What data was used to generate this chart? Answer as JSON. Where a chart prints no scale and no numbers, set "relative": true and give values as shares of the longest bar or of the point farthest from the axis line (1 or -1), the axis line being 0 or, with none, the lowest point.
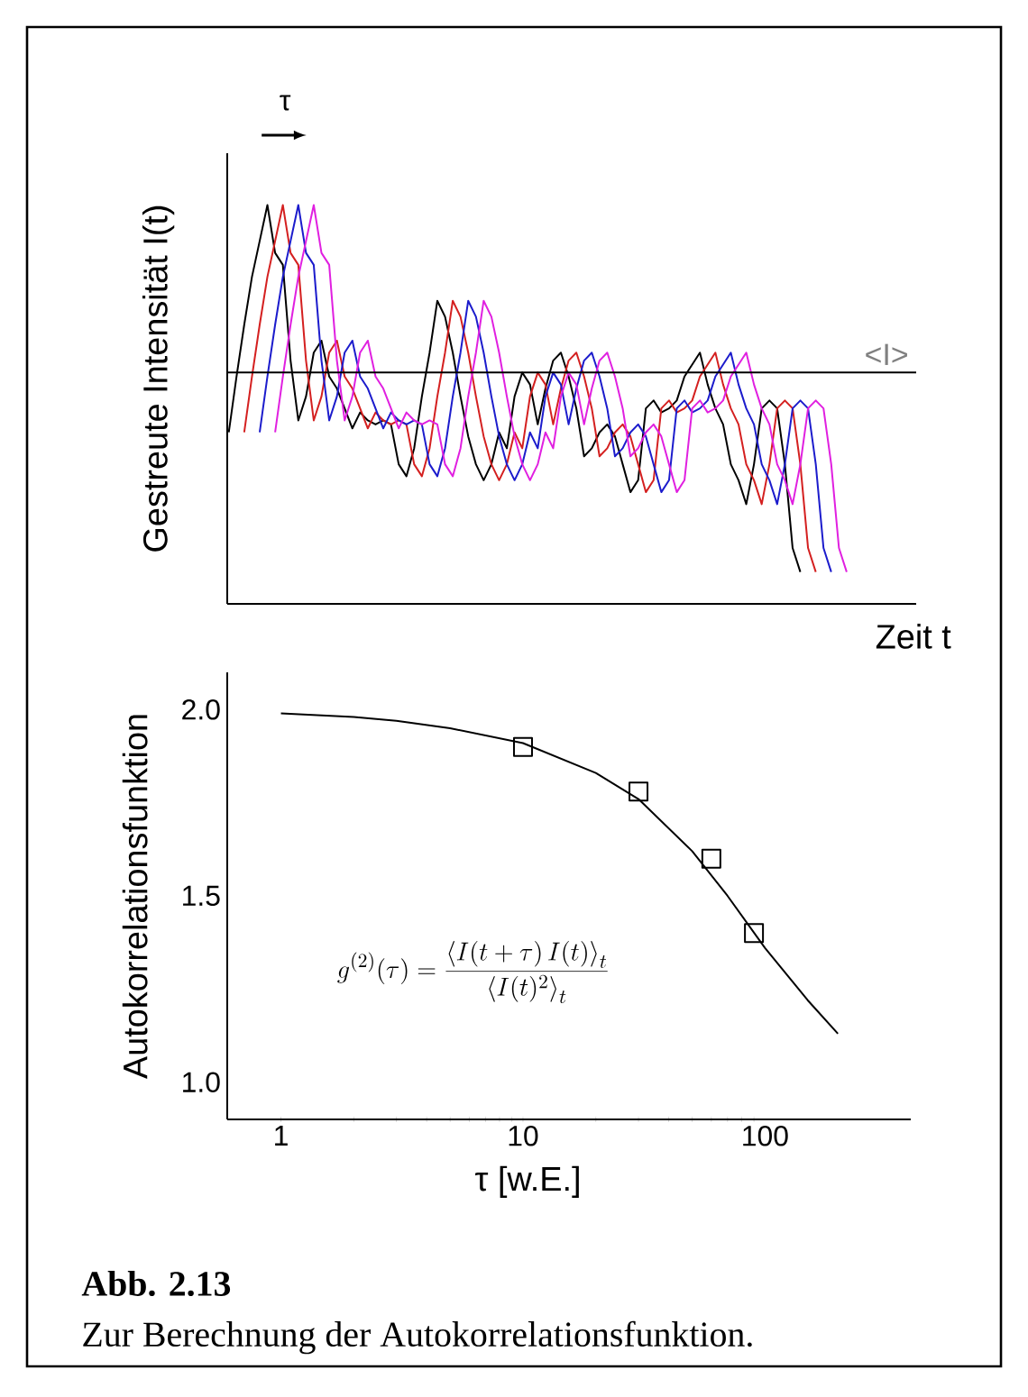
{
  "chart_data": [
    {
      "type": "line",
      "relative": true,
      "ylabel": "Gestreute Intensität I(t)",
      "xlabel": "Zeit t",
      "annotations": [
        "τ"
      ],
      "categories": [
        null,
        null,
        null,
        null,
        null,
        null,
        null,
        null,
        null,
        null,
        null,
        null,
        null,
        null,
        null,
        null,
        null,
        null,
        null,
        null,
        null,
        null,
        null,
        null,
        null,
        null,
        null,
        null,
        null,
        null,
        null,
        null,
        null,
        null,
        null,
        null,
        null,
        null,
        null,
        null,
        null,
        null,
        null,
        null,
        null,
        null,
        null,
        null,
        null,
        null,
        null,
        null,
        null,
        null,
        null,
        null,
        null,
        null,
        null,
        null,
        null,
        null,
        null,
        null,
        null,
        null,
        null,
        null,
        null,
        null,
        null,
        null,
        null,
        null,
        null,
        null,
        null,
        null,
        null,
        null,
        null
      ],
      "ref_lines": [
        {
          "axis": "y",
          "value": 0.58,
          "label": "<I>"
        }
      ],
      "series": [
        {
          "color": "#000000",
          "values": [
            0.43,
            0.57,
            0.7,
            0.82,
            0.91,
            1.0,
            0.88,
            0.85,
            0.61,
            0.46,
            0.52,
            0.63,
            0.66,
            0.57,
            0.54,
            0.49,
            0.44,
            0.48,
            0.46,
            0.45,
            0.46,
            0.45,
            0.35,
            0.32,
            0.39,
            0.52,
            0.63,
            0.76,
            0.72,
            0.63,
            0.52,
            0.42,
            0.35,
            0.31,
            0.35,
            0.43,
            0.39,
            0.52,
            0.58,
            0.55,
            0.45,
            0.54,
            0.61,
            0.63,
            0.57,
            0.49,
            0.37,
            0.39,
            0.43,
            0.45,
            0.42,
            0.35,
            0.28,
            0.31,
            0.49,
            0.51,
            0.48,
            0.49,
            0.51,
            0.57,
            0.6,
            0.63,
            0.55,
            0.49,
            0.45,
            0.35,
            0.31,
            0.25,
            0.35,
            0.49,
            0.51,
            0.49,
            0.35,
            0.14,
            0.08,
            null,
            null,
            null,
            null,
            null,
            null
          ]
        },
        {
          "color": "#d42020",
          "values": [
            null,
            null,
            0.43,
            0.57,
            0.7,
            0.82,
            0.91,
            1.0,
            0.88,
            0.85,
            0.61,
            0.46,
            0.52,
            0.63,
            0.66,
            0.57,
            0.54,
            0.49,
            0.44,
            0.48,
            0.46,
            0.45,
            0.46,
            0.45,
            0.35,
            0.32,
            0.39,
            0.52,
            0.63,
            0.76,
            0.72,
            0.63,
            0.52,
            0.42,
            0.35,
            0.31,
            0.35,
            0.43,
            0.39,
            0.52,
            0.58,
            0.55,
            0.45,
            0.54,
            0.61,
            0.63,
            0.57,
            0.49,
            0.37,
            0.39,
            0.43,
            0.45,
            0.42,
            0.35,
            0.28,
            0.31,
            0.49,
            0.51,
            0.48,
            0.49,
            0.51,
            0.57,
            0.6,
            0.63,
            0.55,
            0.49,
            0.45,
            0.35,
            0.31,
            0.25,
            0.35,
            0.49,
            0.51,
            0.49,
            0.35,
            0.14,
            0.08,
            null,
            null,
            null,
            null
          ]
        },
        {
          "color": "#1c1ccc",
          "values": [
            null,
            null,
            null,
            null,
            0.43,
            0.57,
            0.7,
            0.82,
            0.91,
            1.0,
            0.88,
            0.85,
            0.61,
            0.46,
            0.52,
            0.63,
            0.66,
            0.57,
            0.54,
            0.49,
            0.44,
            0.48,
            0.46,
            0.45,
            0.46,
            0.45,
            0.35,
            0.32,
            0.39,
            0.52,
            0.63,
            0.76,
            0.72,
            0.63,
            0.52,
            0.42,
            0.35,
            0.31,
            0.35,
            0.43,
            0.39,
            0.52,
            0.58,
            0.55,
            0.45,
            0.54,
            0.61,
            0.63,
            0.57,
            0.49,
            0.37,
            0.39,
            0.43,
            0.45,
            0.42,
            0.35,
            0.28,
            0.31,
            0.49,
            0.51,
            0.48,
            0.49,
            0.51,
            0.57,
            0.6,
            0.63,
            0.55,
            0.49,
            0.45,
            0.35,
            0.31,
            0.25,
            0.35,
            0.49,
            0.51,
            0.49,
            0.35,
            0.14,
            0.08,
            null,
            null
          ]
        },
        {
          "color": "#e020e0",
          "values": [
            null,
            null,
            null,
            null,
            null,
            null,
            0.43,
            0.57,
            0.7,
            0.82,
            0.91,
            1.0,
            0.88,
            0.85,
            0.61,
            0.46,
            0.52,
            0.63,
            0.66,
            0.57,
            0.54,
            0.49,
            0.44,
            0.48,
            0.46,
            0.45,
            0.46,
            0.45,
            0.35,
            0.32,
            0.39,
            0.52,
            0.63,
            0.76,
            0.72,
            0.63,
            0.52,
            0.42,
            0.35,
            0.31,
            0.35,
            0.43,
            0.39,
            0.52,
            0.58,
            0.55,
            0.45,
            0.54,
            0.61,
            0.63,
            0.57,
            0.49,
            0.37,
            0.39,
            0.43,
            0.45,
            0.42,
            0.35,
            0.28,
            0.31,
            0.49,
            0.51,
            0.48,
            0.49,
            0.51,
            0.57,
            0.6,
            0.63,
            0.55,
            0.49,
            0.45,
            0.35,
            0.31,
            0.25,
            0.35,
            0.49,
            0.51,
            0.49,
            0.35,
            0.14,
            0.08
          ]
        }
      ]
    },
    {
      "type": "line",
      "log": "x",
      "ylabel": "Autokorrelationsfunktion",
      "xlabel": "τ [w.E.]",
      "xlim": [
        0.6,
        400
      ],
      "ylim": [
        0.9,
        2.1
      ],
      "xticks": [
        1,
        10,
        100
      ],
      "yticks": [
        {
          "value": 1,
          "label": "1.0"
        },
        {
          "value": 1.5,
          "label": "1.5"
        },
        {
          "value": 2,
          "label": "2.0"
        }
      ],
      "annotations": [
        "g^{(2)}(\\tau)=\\frac{\\left\\langle I(t+\\tau)\\,I(t)\\right\\rangle_t}{\\left\\langle I(t)^2\\right\\rangle_t}",
        "Abb. 2.13",
        "Zur Berechnung der Autokorrelationsfunktion."
      ],
      "series": [
        {
          "type": "line",
          "marker": "none",
          "color": "#000000",
          "x": [
            1,
            2,
            3,
            5,
            10,
            20,
            30,
            50,
            70,
            100,
            150,
            200
          ],
          "values": [
            1.99,
            1.98,
            1.97,
            1.95,
            1.91,
            1.83,
            1.76,
            1.62,
            1.5,
            1.36,
            1.22,
            1.13
          ]
        },
        {
          "type": "scatter",
          "marker": "square",
          "color": "#000000",
          "x": [
            10,
            30,
            60,
            90
          ],
          "values": [
            1.9,
            1.78,
            1.6,
            1.4
          ]
        }
      ]
    }
  ]
}
